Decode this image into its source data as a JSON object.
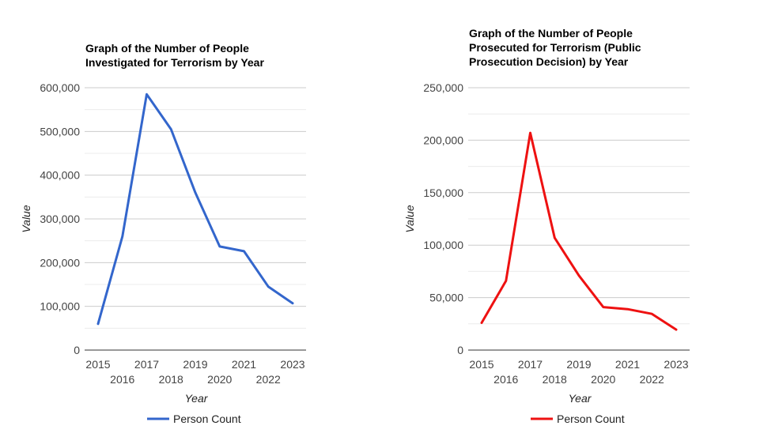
{
  "chart_data": [
    {
      "type": "line",
      "title_lines": [
        "Graph of the Number of People",
        "Investigated for Terrorism by Year"
      ],
      "xlabel": "Year",
      "ylabel": "Value",
      "categories": [
        "2015",
        "2016",
        "2017",
        "2018",
        "2019",
        "2020",
        "2021",
        "2022",
        "2023"
      ],
      "series": [
        {
          "name": "Person Count",
          "color": "#3366cc",
          "values": [
            60000,
            260000,
            585000,
            505000,
            360000,
            237000,
            226000,
            145000,
            107000
          ]
        }
      ],
      "ylim": [
        0,
        600000
      ],
      "yticks": [
        0,
        100000,
        200000,
        300000,
        400000,
        500000,
        600000
      ],
      "ytick_labels": [
        "0",
        "100,000",
        "200,000",
        "300,000",
        "400,000",
        "500,000",
        "600,000"
      ],
      "grid": true,
      "legend": "bottom"
    },
    {
      "type": "line",
      "title_lines": [
        "Graph of the Number of People",
        "Prosecuted for Terrorism (Public",
        "Prosecution Decision) by Year"
      ],
      "xlabel": "Year",
      "ylabel": "Value",
      "categories": [
        "2015",
        "2016",
        "2017",
        "2018",
        "2019",
        "2020",
        "2021",
        "2022",
        "2023"
      ],
      "series": [
        {
          "name": "Person Count",
          "color": "#ee1111",
          "values": [
            26000,
            66000,
            207000,
            107000,
            71000,
            41000,
            39000,
            34500,
            19500
          ]
        }
      ],
      "ylim": [
        0,
        250000
      ],
      "yticks": [
        0,
        50000,
        100000,
        150000,
        200000,
        250000
      ],
      "ytick_labels": [
        "0",
        "50,000",
        "100,000",
        "150,000",
        "200,000",
        "250,000"
      ],
      "grid": true,
      "legend": "bottom"
    }
  ]
}
